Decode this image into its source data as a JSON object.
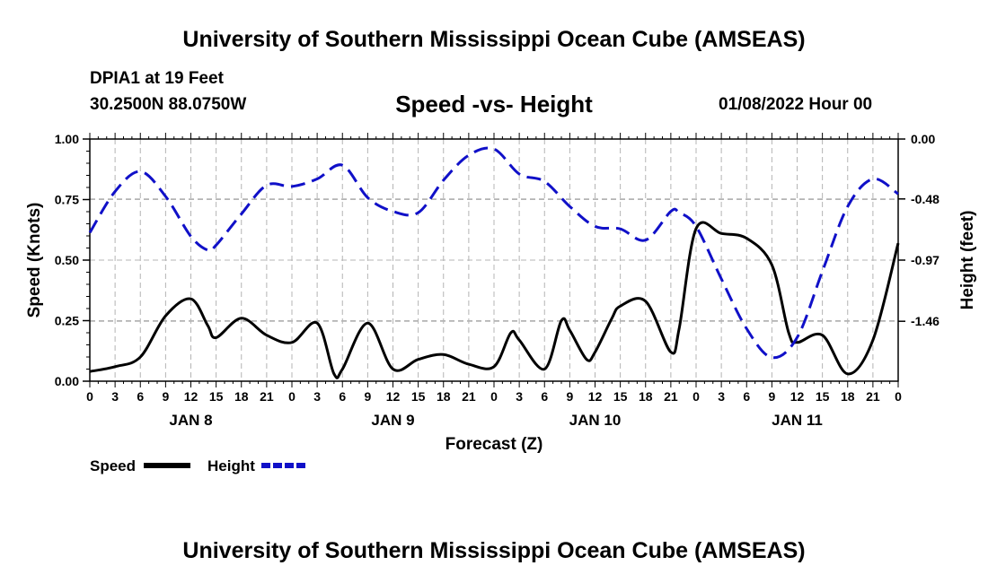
{
  "header": {
    "title": "University of Southern Mississippi Ocean Cube (AMSEAS)",
    "station": "DPIA1 at 19 Feet",
    "coordinates": "30.2500N  88.0750W",
    "subtitle": "Speed -vs- Height",
    "datetime": "01/08/2022 Hour 00"
  },
  "footer": {
    "title": "University of Southern Mississippi Ocean Cube (AMSEAS)"
  },
  "legend": {
    "items": [
      {
        "label": "Speed",
        "color": "#000000",
        "style": "solid"
      },
      {
        "label": "Height",
        "color": "#1010c8",
        "style": "dashed"
      }
    ]
  },
  "chart_data": {
    "type": "line",
    "title": "Speed -vs- Height",
    "xlabel": "Forecast (Z)",
    "ylabel": "Speed (Knots)",
    "y2label": "Height (feet)",
    "x_unit": "hours from 01/08/2022 00Z",
    "xlim": [
      0,
      96
    ],
    "ylim": [
      0,
      1.0
    ],
    "y2lim": [
      -1.94,
      0.0
    ],
    "x_ticks": [
      0,
      3,
      6,
      9,
      12,
      15,
      18,
      21,
      24,
      27,
      30,
      33,
      36,
      39,
      42,
      45,
      48,
      51,
      54,
      57,
      60,
      63,
      66,
      69,
      72,
      75,
      78,
      81,
      84,
      87,
      90,
      93,
      96
    ],
    "x_tick_labels": [
      "0",
      "3",
      "6",
      "9",
      "12",
      "15",
      "18",
      "21",
      "0",
      "3",
      "6",
      "9",
      "12",
      "15",
      "18",
      "21",
      "0",
      "3",
      "6",
      "9",
      "12",
      "15",
      "18",
      "21",
      "0",
      "3",
      "6",
      "9",
      "12",
      "15",
      "18",
      "21",
      "0"
    ],
    "day_labels": [
      {
        "x": 12,
        "label": "JAN 8"
      },
      {
        "x": 36,
        "label": "JAN 9"
      },
      {
        "x": 60,
        "label": "JAN 10"
      },
      {
        "x": 84,
        "label": "JAN 11"
      }
    ],
    "y_ticks": [
      0.0,
      0.25,
      0.5,
      0.75,
      1.0
    ],
    "y_tick_labels": [
      "0.00",
      "0.25",
      "0.50",
      "0.75",
      "1.00"
    ],
    "y2_ticks": [
      0.0,
      -0.48,
      -0.97,
      -1.46
    ],
    "y2_tick_labels": [
      "0.00",
      "-0.48",
      "-0.97",
      "-1.46"
    ],
    "grid": true,
    "series": [
      {
        "name": "Speed",
        "axis": "left",
        "color": "#000000",
        "x": [
          0,
          3,
          6,
          9,
          12,
          14,
          15,
          18,
          21,
          24,
          27,
          29,
          30,
          33,
          36,
          39,
          42,
          45,
          48,
          50,
          51,
          54,
          56,
          57,
          59,
          60,
          62,
          63,
          66,
          69,
          70,
          72,
          75,
          78,
          81,
          83,
          84,
          87,
          90,
          93,
          96
        ],
        "values": [
          0.04,
          0.06,
          0.1,
          0.27,
          0.34,
          0.23,
          0.18,
          0.26,
          0.19,
          0.16,
          0.24,
          0.03,
          0.05,
          0.24,
          0.05,
          0.09,
          0.11,
          0.07,
          0.06,
          0.2,
          0.17,
          0.05,
          0.25,
          0.21,
          0.09,
          0.12,
          0.26,
          0.31,
          0.33,
          0.12,
          0.22,
          0.63,
          0.61,
          0.59,
          0.48,
          0.2,
          0.16,
          0.19,
          0.03,
          0.17,
          0.57
        ]
      },
      {
        "name": "Height",
        "axis": "right",
        "color": "#1010c8",
        "x": [
          0,
          3,
          6,
          9,
          12,
          14,
          15,
          18,
          21,
          24,
          27,
          30,
          33,
          36,
          39,
          42,
          45,
          48,
          51,
          54,
          57,
          60,
          63,
          66,
          69,
          70,
          72,
          75,
          78,
          81,
          84,
          87,
          90,
          93,
          96
        ],
        "values": [
          -0.75,
          -0.42,
          -0.26,
          -0.46,
          -0.78,
          -0.89,
          -0.85,
          -0.6,
          -0.37,
          -0.38,
          -0.32,
          -0.21,
          -0.47,
          -0.58,
          -0.59,
          -0.33,
          -0.13,
          -0.08,
          -0.28,
          -0.34,
          -0.54,
          -0.7,
          -0.72,
          -0.81,
          -0.58,
          -0.59,
          -0.7,
          -1.12,
          -1.52,
          -1.75,
          -1.59,
          -1.06,
          -0.54,
          -0.32,
          -0.44
        ]
      }
    ]
  }
}
